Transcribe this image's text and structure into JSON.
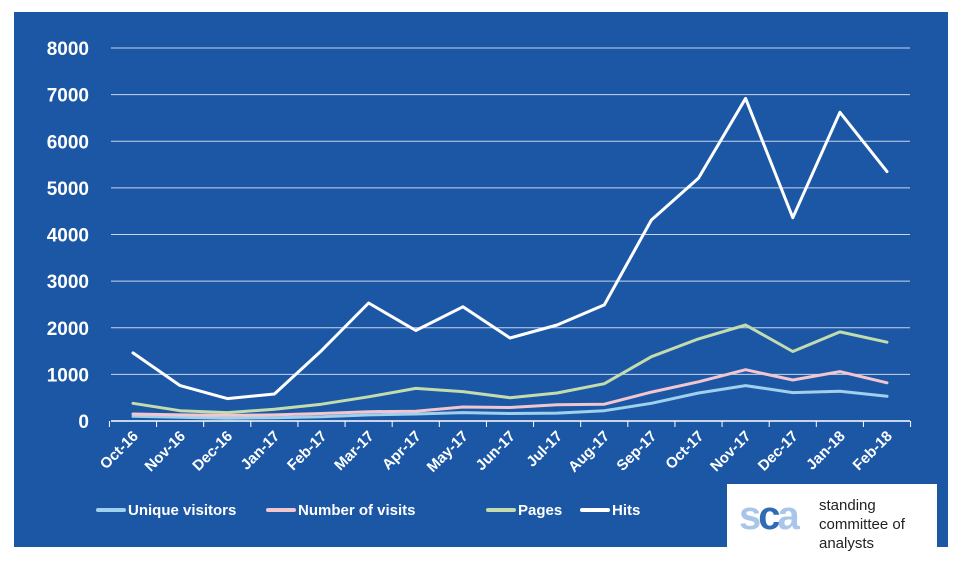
{
  "chart_data": {
    "type": "line",
    "categories": [
      "Oct-16",
      "Nov-16",
      "Dec-16",
      "Jan-17",
      "Feb-17",
      "Mar-17",
      "Apr-17",
      "May-17",
      "Jun-17",
      "Jul-17",
      "Aug-17",
      "Sep-17",
      "Oct-17",
      "Nov-17",
      "Dec-17",
      "Jan-18",
      "Feb-18"
    ],
    "series": [
      {
        "name": "Unique visitors",
        "color": "#9fd0ec",
        "values": [
          100,
          80,
          60,
          70,
          90,
          130,
          150,
          180,
          160,
          170,
          220,
          380,
          600,
          760,
          610,
          640,
          530
        ]
      },
      {
        "name": "Number of visits",
        "color": "#f2c6cf",
        "values": [
          150,
          130,
          120,
          130,
          160,
          200,
          210,
          300,
          290,
          350,
          360,
          620,
          840,
          1100,
          880,
          1060,
          820
        ]
      },
      {
        "name": "Pages",
        "color": "#c3dcae",
        "values": [
          380,
          220,
          180,
          250,
          360,
          520,
          700,
          630,
          500,
          600,
          800,
          1380,
          1760,
          2060,
          1490,
          1910,
          1690
        ]
      },
      {
        "name": "Hits",
        "color": "#ffffff",
        "values": [
          1460,
          760,
          480,
          580,
          1510,
          2530,
          1940,
          2450,
          1780,
          2060,
          2490,
          4310,
          5210,
          6920,
          4360,
          6620,
          5350
        ]
      }
    ],
    "yticks": [
      "0",
      "1000",
      "2000",
      "3000",
      "4000",
      "5000",
      "6000",
      "7000",
      "8000"
    ],
    "ylim": [
      0,
      8000
    ],
    "grid": true,
    "legend_position": "bottom-left"
  },
  "logo": {
    "mark_letters": [
      "s",
      "c",
      "a"
    ],
    "lines": [
      "standing",
      "committee of",
      "analysts"
    ]
  }
}
